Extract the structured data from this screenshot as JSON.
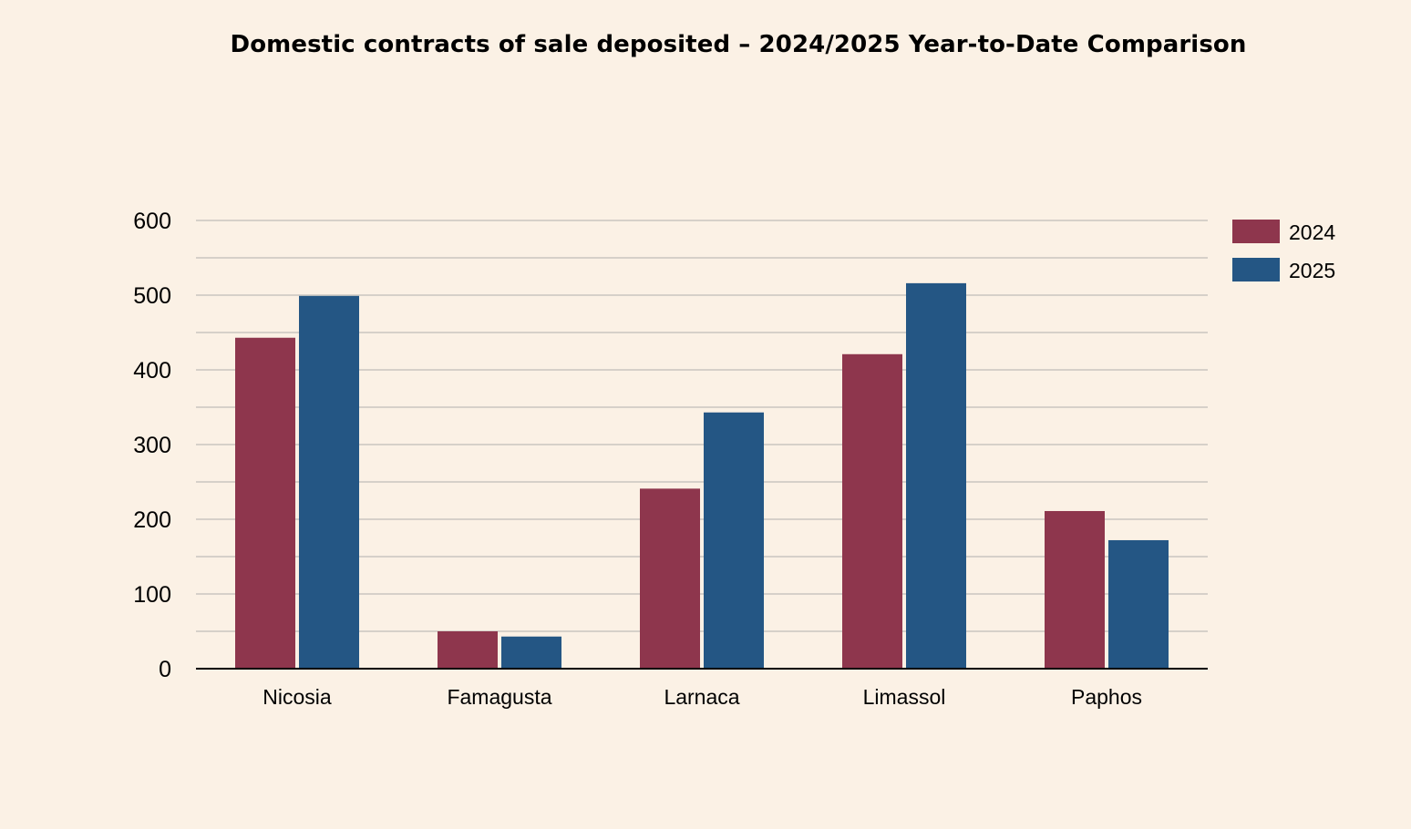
{
  "chart_data": {
    "type": "bar",
    "title": "Domestic contracts of sale deposited – 2024/2025 Year-to-Date Comparison",
    "xlabel": "",
    "ylabel": "",
    "categories": [
      "Nicosia",
      "Famagusta",
      "Larnaca",
      "Limassol",
      "Paphos"
    ],
    "series": [
      {
        "name": "2024",
        "color": "#8E364D",
        "values": [
          443,
          50,
          241,
          421,
          211
        ]
      },
      {
        "name": "2025",
        "color": "#245684",
        "values": [
          499,
          43,
          343,
          516,
          172
        ]
      }
    ],
    "ylim": [
      0,
      600
    ],
    "yticks": [
      0,
      100,
      200,
      300,
      400,
      500,
      600
    ],
    "grid": true,
    "legend_position": "top-right"
  }
}
